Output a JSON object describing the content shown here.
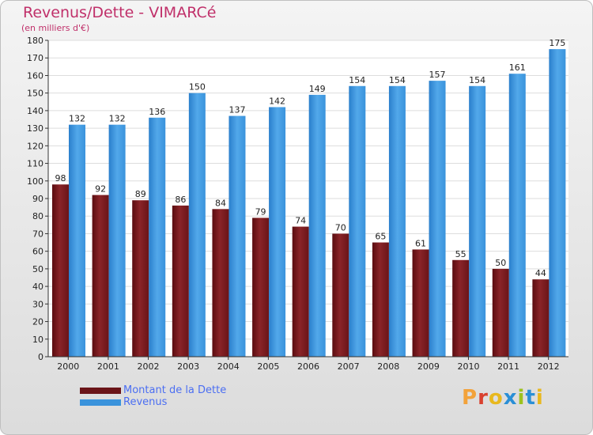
{
  "title": "Revenus/Dette - VIMARCé",
  "subtitle": "(en milliers d'€)",
  "logo": [
    "P",
    "r",
    "o",
    "x",
    "i",
    "t",
    "i"
  ],
  "colors": {
    "debt": "#7a1a1e",
    "revenue": "#3a93dc",
    "title": "#c0306a",
    "legend_text": "#4b6ef2",
    "logo": [
      "#f2a23a",
      "#d9412f",
      "#e8b81e",
      "#2a8fd6",
      "#9cc21e",
      "#2a8fd6",
      "#e8b81e"
    ]
  },
  "chart_data": {
    "type": "bar",
    "categories": [
      "2000",
      "2001",
      "2002",
      "2003",
      "2004",
      "2005",
      "2006",
      "2007",
      "2008",
      "2009",
      "2010",
      "2011",
      "2012"
    ],
    "series": [
      {
        "name": "Montant de la Dette",
        "values": [
          98,
          92,
          89,
          86,
          84,
          79,
          74,
          70,
          65,
          61,
          55,
          50,
          44
        ]
      },
      {
        "name": "Revenus",
        "values": [
          132,
          132,
          136,
          150,
          137,
          142,
          149,
          154,
          154,
          157,
          154,
          161,
          175
        ]
      }
    ],
    "ylim": [
      0,
      180
    ],
    "yticks": [
      0,
      10,
      20,
      30,
      40,
      50,
      60,
      70,
      80,
      90,
      100,
      110,
      120,
      130,
      140,
      150,
      160,
      170,
      180
    ],
    "grid": true,
    "legend": "bottom-left"
  }
}
